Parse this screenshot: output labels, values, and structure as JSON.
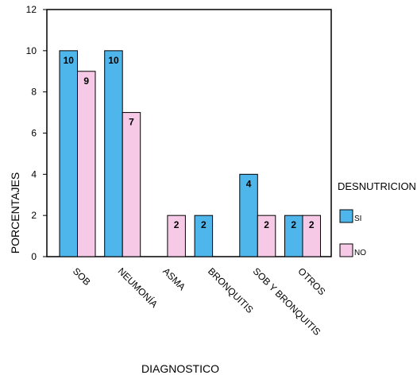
{
  "chart_data": {
    "type": "bar",
    "categories": [
      "SOB",
      "NEUMONÍA",
      "ASMA",
      "BRONQUITIS",
      "SOB Y BRONQUITIS",
      "OTROS"
    ],
    "series": [
      {
        "name": "SI",
        "color": "#4fb6ec",
        "values": [
          10,
          10,
          null,
          2,
          4,
          2
        ]
      },
      {
        "name": "NO",
        "color": "#f6c9e6",
        "values": [
          9,
          7,
          2,
          null,
          2,
          2
        ]
      }
    ],
    "xlabel": "DIAGNOSTICO",
    "ylabel": "PORCENTAJES",
    "ylim": [
      0,
      12
    ],
    "yticks": [
      0,
      2,
      4,
      6,
      8,
      10,
      12
    ],
    "legend": {
      "title": "DESNUTRICION",
      "placement": "right"
    },
    "grid": false
  }
}
